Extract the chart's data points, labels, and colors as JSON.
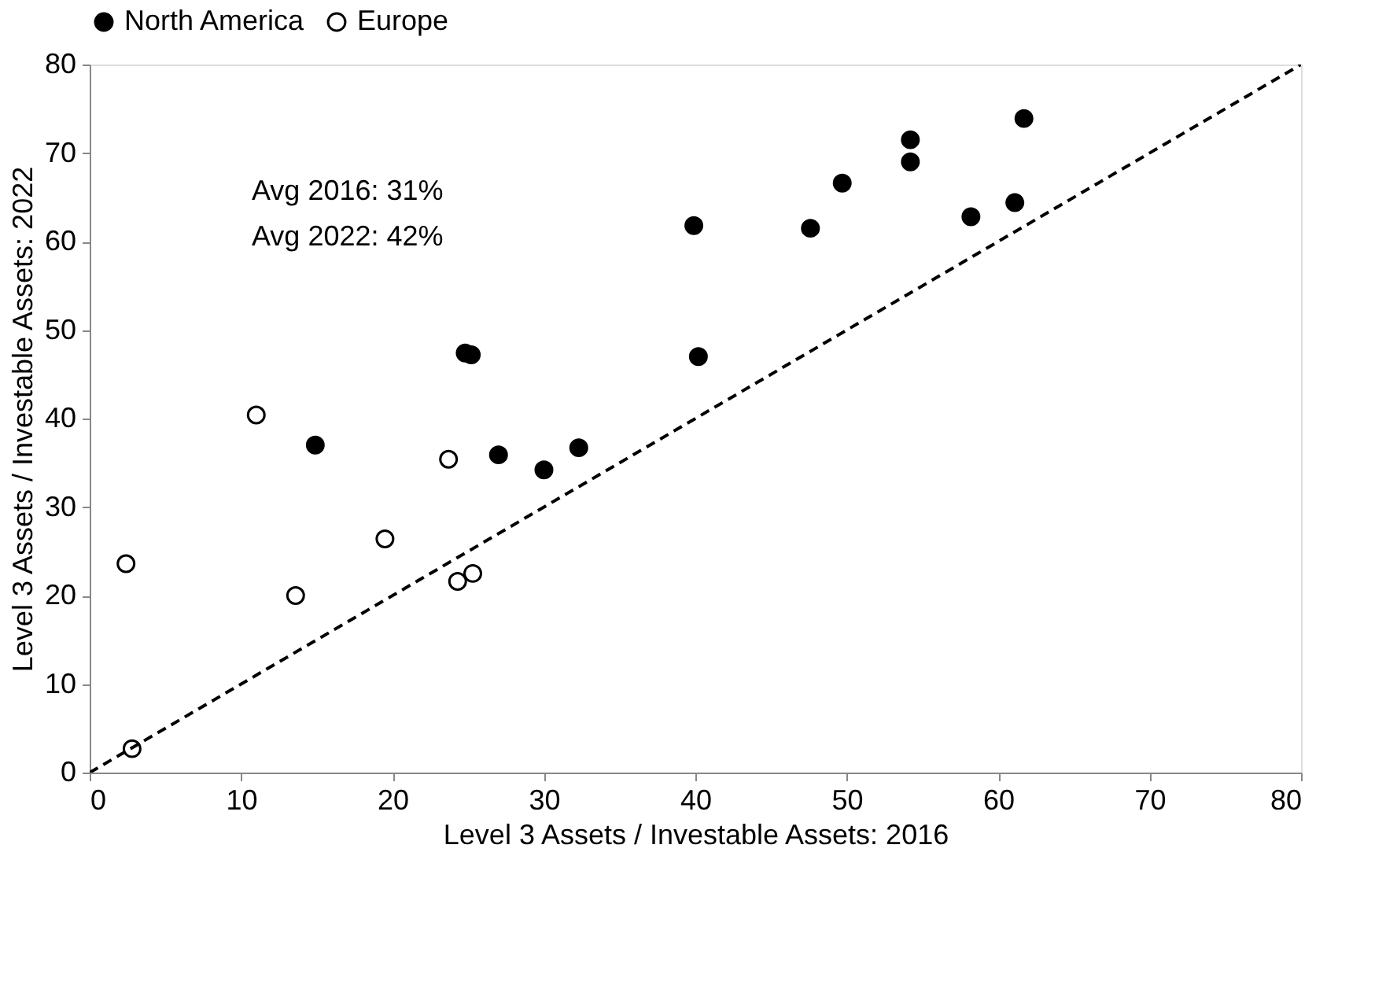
{
  "chart_data": {
    "type": "scatter",
    "xlabel": "Level 3 Assets / Investable Assets: 2016",
    "ylabel": "Level 3 Assets / Investable Assets: 2022",
    "xlim": [
      0,
      80
    ],
    "ylim": [
      0,
      80
    ],
    "xticks": [
      0,
      10,
      20,
      30,
      40,
      50,
      60,
      70,
      80
    ],
    "yticks": [
      0,
      10,
      20,
      30,
      40,
      50,
      60,
      70,
      80
    ],
    "grid": false,
    "legend": "top",
    "marker": "circle",
    "annotations": [
      "Avg 2016: 31%",
      "Avg 2022: 42%"
    ],
    "series": [
      {
        "name": "North America",
        "color": "#000000",
        "x": [
          14.9,
          24.8,
          25.2,
          27.0,
          30.0,
          32.3,
          39.9,
          40.2,
          47.6,
          49.7,
          54.2,
          54.2,
          58.2,
          61.1,
          61.7
        ],
        "values": [
          37.0,
          47.4,
          47.2,
          35.9,
          34.2,
          36.7,
          61.8,
          47.0,
          61.5,
          66.6,
          71.5,
          69.0,
          62.8,
          64.4,
          73.9
        ]
      },
      {
        "name": "Europe",
        "color": "#ffffff",
        "x": [
          2.4,
          2.8,
          11.0,
          13.6,
          19.5,
          23.7,
          24.3,
          25.3
        ],
        "values": [
          23.6,
          2.7,
          40.4,
          20.0,
          26.4,
          35.4,
          21.6,
          22.5
        ]
      },
      {
        "type": "line",
        "color": "#000000",
        "line_style": "dashed",
        "marker": "none",
        "x": [
          0,
          80
        ],
        "values": [
          0,
          80
        ]
      }
    ]
  }
}
